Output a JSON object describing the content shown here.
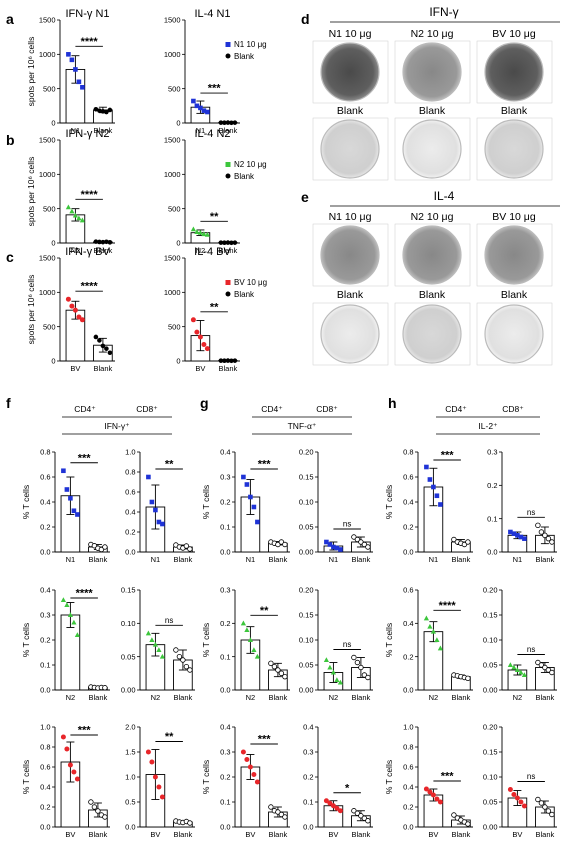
{
  "figure": {
    "panels": {
      "a": "a",
      "b": "b",
      "c": "c",
      "d": "d",
      "e": "e",
      "f": "f",
      "g": "g",
      "h": "h"
    }
  },
  "photos": {
    "d": {
      "title": "IFN-γ",
      "top_labels": [
        "N1 10 μg",
        "N2 10 μg",
        "BV 10 μg"
      ],
      "bottom_labels": [
        "Blank",
        "Blank",
        "Blank"
      ]
    },
    "e": {
      "title": "IL-4",
      "top_labels": [
        "N1 10 μg",
        "N2 10 μg",
        "BV 10 μg"
      ],
      "bottom_labels": [
        "Blank",
        "Blank",
        "Blank"
      ]
    }
  },
  "headers": {
    "f": {
      "cd4": "CD4⁺",
      "cd8": "CD8⁺",
      "cyt": "IFN-γ⁺"
    },
    "g": {
      "cd4": "CD4⁺",
      "cd8": "CD8⁺",
      "cyt": "TNF-α⁺"
    },
    "h": {
      "cd4": "CD4⁺",
      "cd8": "CD8⁺",
      "cyt": "IL-2⁺"
    }
  },
  "colors": {
    "N1": "#1f33d6",
    "N2": "#3cc63c",
    "BV": "#e8262a",
    "Blank": "#000000"
  },
  "chart_data": [
    {
      "id": "a1",
      "type": "bar",
      "title": "IFN-γ N1",
      "ylabel": "spots per 10⁶ cells",
      "ylim": [
        0,
        1500
      ],
      "yticks": [
        0,
        500,
        1000,
        1500
      ],
      "groups": [
        "N1",
        "Blank"
      ],
      "values": [
        780,
        190
      ],
      "sd": [
        200,
        40
      ],
      "points": [
        [
          1000,
          920,
          780,
          600,
          520
        ],
        [
          200,
          180,
          170,
          160,
          190
        ]
      ],
      "sig": "****",
      "legend": [
        "N1 10 μg",
        "Blank"
      ]
    },
    {
      "id": "a2",
      "type": "bar",
      "title": "IL-4 N1",
      "ylim": [
        0,
        1500
      ],
      "yticks": [
        0,
        500,
        1000,
        1500
      ],
      "groups": [
        "N1",
        "Blank"
      ],
      "values": [
        230,
        5
      ],
      "sd": [
        90,
        3
      ],
      "points": [
        [
          320,
          250,
          220,
          180,
          160
        ],
        [
          5,
          4,
          6,
          3,
          5
        ]
      ],
      "sig": "***"
    },
    {
      "id": "b1",
      "type": "bar",
      "title": "IFN-γ N2",
      "ylabel": "spots per 10⁶ cells",
      "ylim": [
        0,
        1500
      ],
      "yticks": [
        0,
        500,
        1000,
        1500
      ],
      "groups": [
        "N2",
        "Blank"
      ],
      "values": [
        410,
        15
      ],
      "sd": [
        90,
        8
      ],
      "points": [
        [
          520,
          460,
          400,
          360,
          330
        ],
        [
          20,
          15,
          12,
          18,
          10
        ]
      ],
      "sig": "****",
      "legend": [
        "N2 10 μg",
        "Blank"
      ]
    },
    {
      "id": "b2",
      "type": "bar",
      "title": "IL-4 N2",
      "ylim": [
        0,
        1500
      ],
      "yticks": [
        0,
        500,
        1000,
        1500
      ],
      "groups": [
        "N2",
        "Blank"
      ],
      "values": [
        150,
        5
      ],
      "sd": [
        40,
        3
      ],
      "points": [
        [
          200,
          160,
          150,
          130,
          120
        ],
        [
          5,
          4,
          6,
          3,
          5
        ]
      ],
      "sig": "**"
    },
    {
      "id": "c1",
      "type": "bar",
      "title": "IFN-γ BV",
      "ylabel": "spots per 10⁶ cells",
      "ylim": [
        0,
        1500
      ],
      "yticks": [
        0,
        500,
        1000,
        1500
      ],
      "groups": [
        "BV",
        "Blank"
      ],
      "values": [
        740,
        230
      ],
      "sd": [
        130,
        100
      ],
      "points": [
        [
          900,
          800,
          740,
          640,
          600
        ],
        [
          350,
          300,
          220,
          180,
          120
        ]
      ],
      "sig": "****",
      "legend": [
        "BV 10 μg",
        "Blank"
      ]
    },
    {
      "id": "c2",
      "type": "bar",
      "title": "IL-4 BV",
      "ylim": [
        0,
        1500
      ],
      "yticks": [
        0,
        500,
        1000,
        1500
      ],
      "groups": [
        "BV",
        "Blank"
      ],
      "values": [
        370,
        5
      ],
      "sd": [
        220,
        3
      ],
      "points": [
        [
          600,
          420,
          350,
          240,
          180
        ],
        [
          5,
          4,
          6,
          3,
          5
        ]
      ],
      "sig": "**"
    },
    {
      "id": "f1",
      "type": "bar",
      "ylabel": "% T cells",
      "ylim": [
        0,
        0.8
      ],
      "yticks": [
        "0.0",
        "0.2",
        "0.4",
        "0.6",
        "0.8"
      ],
      "groups": [
        "N1",
        "Blank"
      ],
      "values": [
        0.45,
        0.04
      ],
      "sd": [
        0.15,
        0.02
      ],
      "points": [
        [
          0.65,
          0.5,
          0.43,
          0.33,
          0.3
        ],
        [
          0.06,
          0.05,
          0.03,
          0.02,
          0.04
        ]
      ],
      "sig": "***"
    },
    {
      "id": "f2",
      "type": "bar",
      "ylim": [
        0,
        1.0
      ],
      "yticks": [
        "0.0",
        "0.2",
        "0.4",
        "0.6",
        "0.8",
        "1.0"
      ],
      "groups": [
        "N1",
        "Blank"
      ],
      "values": [
        0.45,
        0.05
      ],
      "sd": [
        0.22,
        0.02
      ],
      "points": [
        [
          0.75,
          0.5,
          0.42,
          0.3,
          0.28
        ],
        [
          0.07,
          0.05,
          0.04,
          0.06,
          0.03
        ]
      ],
      "sig": "**"
    },
    {
      "id": "g1",
      "type": "bar",
      "ylabel": "% T cells",
      "ylim": [
        0,
        0.4
      ],
      "yticks": [
        "0.0",
        "0.1",
        "0.2",
        "0.3",
        "0.4"
      ],
      "groups": [
        "N1",
        "Blank"
      ],
      "values": [
        0.22,
        0.035
      ],
      "sd": [
        0.07,
        0.007
      ],
      "points": [
        [
          0.3,
          0.27,
          0.22,
          0.18,
          0.12
        ],
        [
          0.04,
          0.035,
          0.03,
          0.04,
          0.03
        ]
      ],
      "sig": "***"
    },
    {
      "id": "g2",
      "type": "bar",
      "ylim": [
        0,
        0.2
      ],
      "yticks": [
        "0.00",
        "0.05",
        "0.10",
        "0.15",
        "0.20"
      ],
      "groups": [
        "N1",
        "Blank"
      ],
      "values": [
        0.012,
        0.02
      ],
      "sd": [
        0.008,
        0.01
      ],
      "points": [
        [
          0.02,
          0.015,
          0.01,
          0.008,
          0.005
        ],
        [
          0.03,
          0.025,
          0.02,
          0.015,
          0.01
        ]
      ],
      "sig": "ns"
    },
    {
      "id": "h1",
      "type": "bar",
      "ylabel": "% T cells",
      "ylim": [
        0,
        0.8
      ],
      "yticks": [
        "0.0",
        "0.2",
        "0.4",
        "0.6",
        "0.8"
      ],
      "groups": [
        "N1",
        "Blank"
      ],
      "values": [
        0.52,
        0.08
      ],
      "sd": [
        0.15,
        0.02
      ],
      "points": [
        [
          0.68,
          0.58,
          0.52,
          0.45,
          0.38
        ],
        [
          0.1,
          0.08,
          0.07,
          0.06,
          0.08
        ]
      ],
      "sig": "***"
    },
    {
      "id": "h2",
      "type": "bar",
      "ylim": [
        0,
        0.3
      ],
      "yticks": [
        "0.0",
        "0.1",
        "0.2",
        "0.3"
      ],
      "groups": [
        "N1",
        "Blank"
      ],
      "values": [
        0.05,
        0.05
      ],
      "sd": [
        0.01,
        0.025
      ],
      "points": [
        [
          0.06,
          0.055,
          0.05,
          0.045,
          0.04
        ],
        [
          0.08,
          0.06,
          0.05,
          0.04,
          0.03
        ]
      ],
      "sig": "ns"
    },
    {
      "id": "f3",
      "type": "bar",
      "ylabel": "% T cells",
      "ylim": [
        0,
        0.4
      ],
      "yticks": [
        "0.0",
        "0.1",
        "0.2",
        "0.3",
        "0.4"
      ],
      "groups": [
        "N2",
        "Blank"
      ],
      "values": [
        0.3,
        0.01
      ],
      "sd": [
        0.05,
        0.003
      ],
      "points": [
        [
          0.36,
          0.34,
          0.3,
          0.27,
          0.22
        ],
        [
          0.012,
          0.01,
          0.008,
          0.01,
          0.009
        ]
      ],
      "sig": "****"
    },
    {
      "id": "f4",
      "type": "bar",
      "ylim": [
        0,
        0.15
      ],
      "yticks": [
        "0.00",
        "0.05",
        "0.10",
        "0.15"
      ],
      "groups": [
        "N2",
        "Blank"
      ],
      "values": [
        0.068,
        0.045
      ],
      "sd": [
        0.017,
        0.015
      ],
      "points": [
        [
          0.085,
          0.075,
          0.068,
          0.06,
          0.05
        ],
        [
          0.06,
          0.05,
          0.045,
          0.035,
          0.03
        ]
      ],
      "sig": "ns"
    },
    {
      "id": "g3",
      "type": "bar",
      "ylabel": "% T cells",
      "ylim": [
        0,
        0.3
      ],
      "yticks": [
        "0.0",
        "0.1",
        "0.2",
        "0.3"
      ],
      "groups": [
        "N2",
        "Blank"
      ],
      "values": [
        0.15,
        0.06
      ],
      "sd": [
        0.04,
        0.02
      ],
      "points": [
        [
          0.2,
          0.18,
          0.15,
          0.12,
          0.1
        ],
        [
          0.08,
          0.07,
          0.06,
          0.05,
          0.04
        ]
      ],
      "sig": "**"
    },
    {
      "id": "g4",
      "type": "bar",
      "ylim": [
        0,
        0.2
      ],
      "yticks": [
        "0.00",
        "0.05",
        "0.10",
        "0.15",
        "0.20"
      ],
      "groups": [
        "N2",
        "Blank"
      ],
      "values": [
        0.035,
        0.045
      ],
      "sd": [
        0.02,
        0.02
      ],
      "points": [
        [
          0.06,
          0.045,
          0.035,
          0.02,
          0.015
        ],
        [
          0.065,
          0.055,
          0.045,
          0.03,
          0.025
        ]
      ],
      "sig": "ns"
    },
    {
      "id": "h3",
      "type": "bar",
      "ylabel": "% T cells",
      "ylim": [
        0,
        0.6
      ],
      "yticks": [
        "0.0",
        "0.2",
        "0.4",
        "0.6"
      ],
      "groups": [
        "N2",
        "Blank"
      ],
      "values": [
        0.35,
        0.08
      ],
      "sd": [
        0.06,
        0.01
      ],
      "points": [
        [
          0.43,
          0.38,
          0.35,
          0.3,
          0.25
        ],
        [
          0.09,
          0.085,
          0.08,
          0.075,
          0.07
        ]
      ],
      "sig": "****"
    },
    {
      "id": "h4",
      "type": "bar",
      "ylim": [
        0,
        0.2
      ],
      "yticks": [
        "0.00",
        "0.05",
        "0.10",
        "0.15",
        "0.20"
      ],
      "groups": [
        "N2",
        "Blank"
      ],
      "values": [
        0.04,
        0.045
      ],
      "sd": [
        0.01,
        0.01
      ],
      "points": [
        [
          0.05,
          0.045,
          0.04,
          0.035,
          0.03
        ],
        [
          0.055,
          0.05,
          0.045,
          0.04,
          0.035
        ]
      ],
      "sig": "ns"
    },
    {
      "id": "f5",
      "type": "bar",
      "ylabel": "% T cells",
      "ylim": [
        0,
        1.0
      ],
      "yticks": [
        "0.0",
        "0.2",
        "0.4",
        "0.6",
        "0.8",
        "1.0"
      ],
      "groups": [
        "BV",
        "Blank"
      ],
      "values": [
        0.65,
        0.17
      ],
      "sd": [
        0.2,
        0.07
      ],
      "points": [
        [
          0.9,
          0.78,
          0.62,
          0.55,
          0.48
        ],
        [
          0.25,
          0.2,
          0.16,
          0.12,
          0.1
        ]
      ],
      "sig": "***"
    },
    {
      "id": "f6",
      "type": "bar",
      "ylim": [
        0,
        2.0
      ],
      "yticks": [
        "0.0",
        "0.5",
        "1.0",
        "1.5",
        "2.0"
      ],
      "groups": [
        "BV",
        "Blank"
      ],
      "values": [
        1.05,
        0.1
      ],
      "sd": [
        0.5,
        0.02
      ],
      "points": [
        [
          1.5,
          1.3,
          1.0,
          0.8,
          0.6
        ],
        [
          0.12,
          0.1,
          0.09,
          0.11,
          0.08
        ]
      ],
      "sig": "**"
    },
    {
      "id": "g5",
      "type": "bar",
      "ylabel": "% T cells",
      "ylim": [
        0,
        0.4
      ],
      "yticks": [
        "0.0",
        "0.1",
        "0.2",
        "0.3",
        "0.4"
      ],
      "groups": [
        "BV",
        "Blank"
      ],
      "values": [
        0.24,
        0.06
      ],
      "sd": [
        0.05,
        0.02
      ],
      "points": [
        [
          0.3,
          0.27,
          0.24,
          0.21,
          0.18
        ],
        [
          0.08,
          0.065,
          0.06,
          0.05,
          0.04
        ]
      ],
      "sig": "***"
    },
    {
      "id": "g6",
      "type": "bar",
      "ylim": [
        0,
        0.4
      ],
      "yticks": [
        "0.0",
        "0.1",
        "0.2",
        "0.3",
        "0.4"
      ],
      "groups": [
        "BV",
        "Blank"
      ],
      "values": [
        0.085,
        0.045
      ],
      "sd": [
        0.02,
        0.02
      ],
      "points": [
        [
          0.105,
          0.095,
          0.085,
          0.075,
          0.065
        ],
        [
          0.065,
          0.055,
          0.045,
          0.035,
          0.025
        ]
      ],
      "sig": "*"
    },
    {
      "id": "h5",
      "type": "bar",
      "ylabel": "% T cells",
      "ylim": [
        0,
        1.0
      ],
      "yticks": [
        "0.0",
        "0.2",
        "0.4",
        "0.6",
        "0.8",
        "1.0"
      ],
      "groups": [
        "BV",
        "Blank"
      ],
      "values": [
        0.32,
        0.07
      ],
      "sd": [
        0.06,
        0.04
      ],
      "points": [
        [
          0.38,
          0.35,
          0.32,
          0.28,
          0.25
        ],
        [
          0.12,
          0.09,
          0.07,
          0.05,
          0.03
        ]
      ],
      "sig": "***"
    },
    {
      "id": "h6",
      "type": "bar",
      "ylim": [
        0,
        0.2
      ],
      "yticks": [
        "0.00",
        "0.05",
        "0.10",
        "0.15",
        "0.20"
      ],
      "groups": [
        "BV",
        "Blank"
      ],
      "values": [
        0.058,
        0.04
      ],
      "sd": [
        0.015,
        0.012
      ],
      "points": [
        [
          0.075,
          0.065,
          0.058,
          0.05,
          0.042
        ],
        [
          0.055,
          0.048,
          0.04,
          0.032,
          0.025
        ]
      ],
      "sig": "ns"
    }
  ]
}
